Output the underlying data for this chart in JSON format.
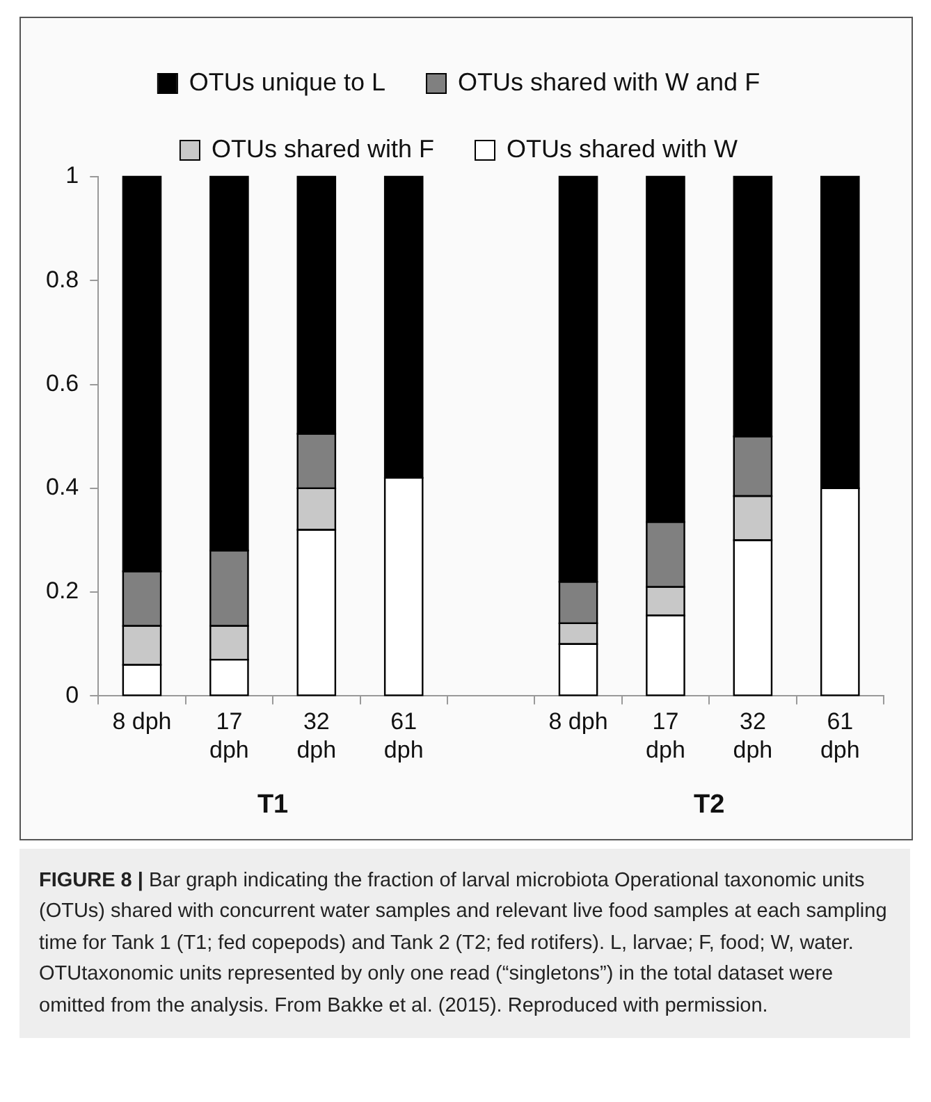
{
  "chart_data": {
    "type": "bar",
    "stacked": true,
    "categories": [
      "8 dph",
      "17 dph",
      "32 dph",
      "61 dph",
      null,
      "8 dph",
      "17 dph",
      "32 dph",
      "61 dph"
    ],
    "series": [
      {
        "name": "OTUs shared with W",
        "color": "#ffffff",
        "values": [
          0.06,
          0.07,
          0.32,
          0.42,
          null,
          0.1,
          0.155,
          0.3,
          0.4
        ]
      },
      {
        "name": "OTUs shared with F",
        "color": "#c8c8c8",
        "values": [
          0.075,
          0.065,
          0.08,
          0,
          null,
          0.04,
          0.055,
          0.085,
          0
        ]
      },
      {
        "name": "OTUs shared with W and F",
        "color": "#808080",
        "values": [
          0.105,
          0.145,
          0.105,
          0,
          null,
          0.08,
          0.125,
          0.115,
          0
        ]
      },
      {
        "name": "OTUs unique to L",
        "color": "#000000",
        "values": [
          0.76,
          0.72,
          0.495,
          0.58,
          null,
          0.78,
          0.665,
          0.5,
          0.6
        ]
      }
    ],
    "ylim": [
      0,
      1
    ],
    "yticks": [
      0,
      0.2,
      0.4,
      0.6,
      0.8,
      1
    ],
    "grid": false,
    "legend": "top",
    "annotations": [
      "T1",
      "T2",
      "FIGURE 8 | Bar graph indicating the fraction of larval microbiota Operational taxonomic units (OTUs) shared with concurrent water samples and relevant live food samples at each sampling time for Tank 1 (T1; fed copepods) and Tank 2 (T2; fed rotifers). L, larvae; F, food; W, water. OTUtaxonomic units represented by only one read (“singletons”) in the total dataset were omitted from the analysis. From Bakke et al. (2015). Reproduced with permission."
    ]
  }
}
